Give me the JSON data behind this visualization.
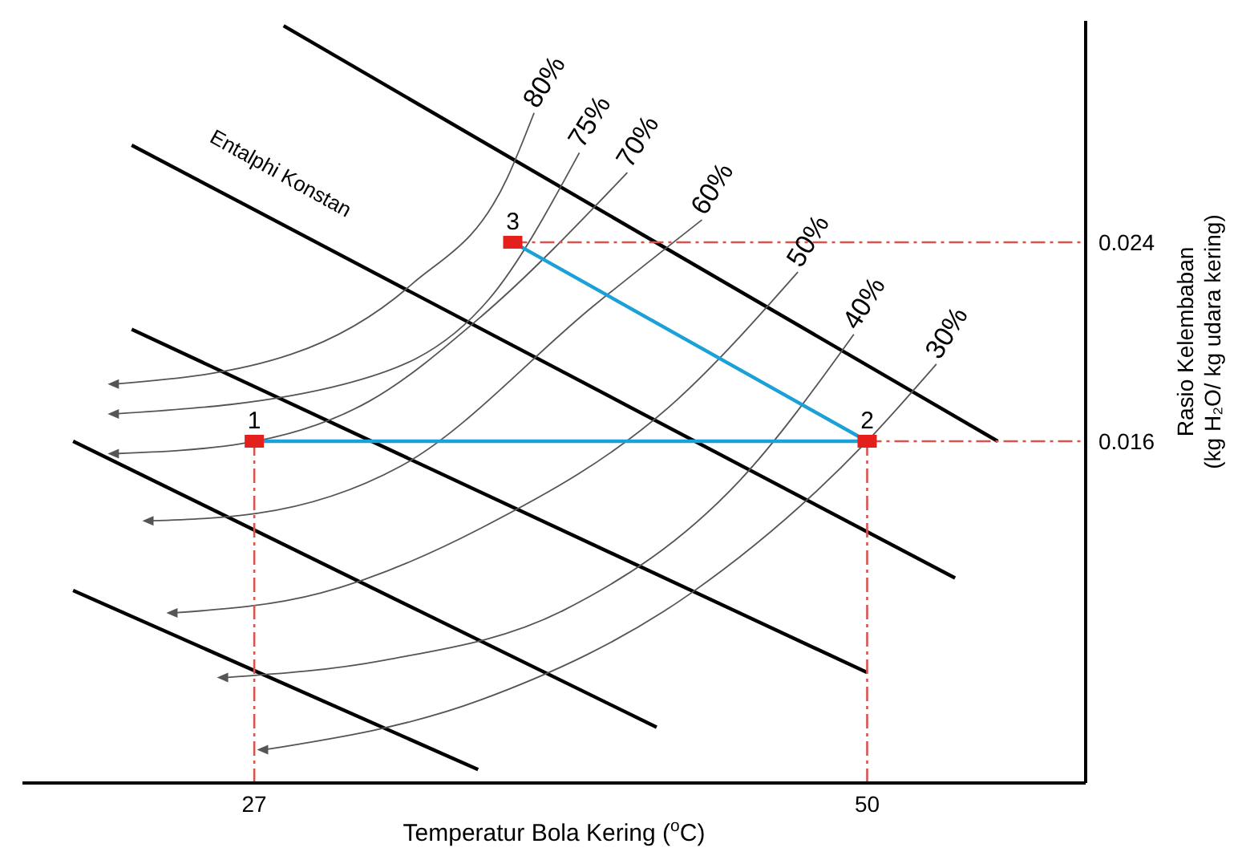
{
  "chart_data": {
    "type": "line",
    "xlabel": "Temperatur Bola Kering ($^{o}$C)",
    "ylabel": "Rasio Kelembaban\n(kg H₂O/ kg udara kering)",
    "xlim": [
      18.3,
      58.2
    ],
    "ylim": [
      0.00226,
      0.0329
    ],
    "xticks": [
      27,
      50
    ],
    "yticks": [
      0.016,
      0.024
    ],
    "series": [
      {
        "color": "#000000",
        "x": [
          28.1,
          54.9
        ],
        "values": [
          0.0327,
          0.016
        ]
      },
      {
        "color": "#000000",
        "x": [
          22.4,
          53.3
        ],
        "values": [
          0.0279,
          0.0105
        ]
      },
      {
        "color": "#000000",
        "x": [
          22.4,
          50.0
        ],
        "values": [
          0.0205,
          0.0067
        ]
      },
      {
        "color": "#000000",
        "x": [
          20.2,
          42.1
        ],
        "values": [
          0.016,
          0.0045
        ]
      },
      {
        "color": "#000000",
        "x": [
          20.2,
          35.4
        ],
        "values": [
          0.01,
          0.0028
        ]
      },
      {
        "name": "80%",
        "color": "#555555",
        "x": [
          21.8,
          28.4,
          32.9,
          36.5,
          37.5
        ],
        "values": [
          0.0183,
          0.0195,
          0.0223,
          0.0266,
          0.0292
        ]
      },
      {
        "name": "75%",
        "color": "#555555",
        "x": [
          21.8,
          30.4,
          35.8,
          39.2
        ],
        "values": [
          0.0171,
          0.0183,
          0.0217,
          0.0276
        ]
      },
      {
        "name": "70%",
        "color": "#555555",
        "x": [
          21.8,
          26.5,
          31.3,
          35.5,
          41.0
        ],
        "values": [
          0.0155,
          0.0159,
          0.0176,
          0.021,
          0.0268
        ]
      },
      {
        "name": "60%",
        "color": "#555555",
        "x": [
          23.1,
          27.1,
          32.5,
          39.8,
          43.8
        ],
        "values": [
          0.0128,
          0.0131,
          0.015,
          0.0215,
          0.0249
        ]
      },
      {
        "name": "50%",
        "color": "#555555",
        "x": [
          24.0,
          29.5,
          35.5,
          42.8,
          47.4
        ],
        "values": [
          0.0091,
          0.0099,
          0.0125,
          0.0176,
          0.0228
        ]
      },
      {
        "name": "40%",
        "color": "#555555",
        "x": [
          25.9,
          31.9,
          38.6,
          45.2,
          49.5
        ],
        "values": [
          0.0065,
          0.0072,
          0.0092,
          0.0144,
          0.0203
        ]
      },
      {
        "name": "30%",
        "color": "#555555",
        "x": [
          27.4,
          35.5,
          43.4,
          50.0,
          52.6
        ],
        "values": [
          0.0036,
          0.0056,
          0.0099,
          0.016,
          0.0191
        ]
      },
      {
        "color": "#d9534f",
        "line_style": "dashed",
        "x": [
          27,
          27
        ],
        "values": [
          0.00226,
          0.016
        ]
      },
      {
        "color": "#d9534f",
        "line_style": "dashed",
        "x": [
          50,
          50
        ],
        "values": [
          0.00226,
          0.016
        ]
      },
      {
        "color": "#d9534f",
        "line_style": "dashed",
        "x": [
          50,
          58.2
        ],
        "values": [
          0.016,
          0.016
        ]
      },
      {
        "color": "#d9534f",
        "line_style": "dashed",
        "x": [
          36.7,
          58.2
        ],
        "values": [
          0.024,
          0.024
        ]
      },
      {
        "color": "#1ba1d8",
        "x": [
          27,
          50,
          36.7
        ],
        "values": [
          0.016,
          0.016,
          0.024
        ]
      },
      {
        "type": "scatter",
        "color": "#e3201b",
        "marker": "square",
        "x": [
          27,
          50,
          36.7
        ],
        "values": [
          0.016,
          0.016,
          0.024
        ]
      }
    ],
    "annotations": [
      "Entalphi Konstan",
      {
        "text": "1",
        "x": 27,
        "y": 0.016
      },
      {
        "text": "2",
        "x": 50,
        "y": 0.016
      },
      {
        "text": "3",
        "x": 36.7,
        "y": 0.024
      }
    ]
  }
}
